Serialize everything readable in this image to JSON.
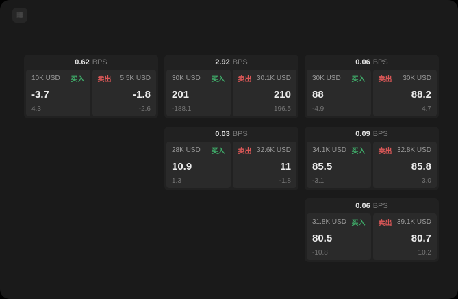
{
  "app": {
    "icon_glyph": "▦"
  },
  "labels": {
    "bps": "BPS",
    "buy": "买入",
    "sell": "卖出"
  },
  "colors": {
    "background": "#1a1a1a",
    "card": "#212121",
    "panel": "#2a2a2a",
    "buy_green": "#3fae6a",
    "sell_red": "#d95757"
  },
  "cards": [
    {
      "bps": "0.62",
      "buy": {
        "size": "10K USD",
        "price": "-3.7",
        "sub": "4.3"
      },
      "sell": {
        "size": "5.5K USD",
        "price": "-1.8",
        "sub": "-2.6"
      }
    },
    {
      "bps": "2.92",
      "buy": {
        "size": "30K USD",
        "price": "201",
        "sub": "-188.1"
      },
      "sell": {
        "size": "30.1K USD",
        "price": "210",
        "sub": "196.5"
      }
    },
    {
      "bps": "0.06",
      "buy": {
        "size": "30K USD",
        "price": "88",
        "sub": "-4.9"
      },
      "sell": {
        "size": "30K USD",
        "price": "88.2",
        "sub": "4.7"
      }
    },
    {
      "bps": "0.03",
      "buy": {
        "size": "28K USD",
        "price": "10.9",
        "sub": "1.3"
      },
      "sell": {
        "size": "32.6K USD",
        "price": "11",
        "sub": "-1.8"
      }
    },
    {
      "bps": "0.09",
      "buy": {
        "size": "34.1K USD",
        "price": "85.5",
        "sub": "-3.1"
      },
      "sell": {
        "size": "32.8K USD",
        "price": "85.8",
        "sub": "3.0"
      }
    },
    {
      "bps": "0.06",
      "buy": {
        "size": "31.8K USD",
        "price": "80.5",
        "sub": "-10.8"
      },
      "sell": {
        "size": "39.1K USD",
        "price": "80.7",
        "sub": "10.2"
      }
    }
  ]
}
